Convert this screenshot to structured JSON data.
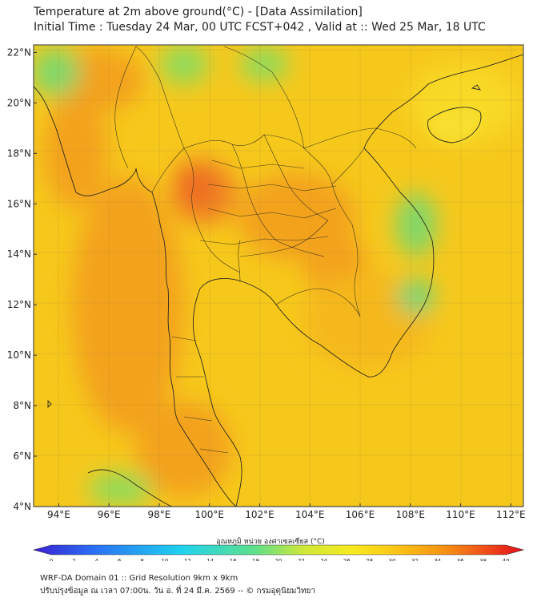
{
  "header": {
    "title_line1": "Temperature at 2m above ground(°C) - [Data Assimilation]",
    "title_line2": "Initial Time : Tuesday 24 Mar, 00 UTC FCST+042 , Valid at :: Wed 25 Mar, 18 UTC"
  },
  "map": {
    "lat_labels": [
      "4°N",
      "6°N",
      "8°N",
      "10°N",
      "12°N",
      "14°N",
      "16°N",
      "18°N",
      "20°N",
      "22°N"
    ],
    "lon_labels": [
      "94°E",
      "96°E",
      "98°E",
      "100°E",
      "102°E",
      "104°E",
      "106°E",
      "108°E",
      "110°E",
      "112°E"
    ],
    "lat_range": [
      4,
      22.3
    ],
    "lon_range": [
      93,
      112.5
    ]
  },
  "colorbar": {
    "title": "อุณหภูมิ หน่วย องศาเซลเซียส (°C)",
    "ticks": [
      "0",
      "2",
      "4",
      "6",
      "8",
      "10",
      "12",
      "14",
      "16",
      "18",
      "20",
      "22",
      "24",
      "26",
      "28",
      "30",
      "32",
      "34",
      "36",
      "38",
      "40"
    ],
    "min": 0,
    "max": 40
  },
  "footer": {
    "line1": "WRF-DA Domain 01 :: Grid Resolution 9km x 9km",
    "line2": "ปรับปรุงข้อมูล ณ เวลา 07:00น. วัน อ. ที่ 24 มี.ค. 2569 -- © กรมอุตุนิยมวิทยา"
  }
}
